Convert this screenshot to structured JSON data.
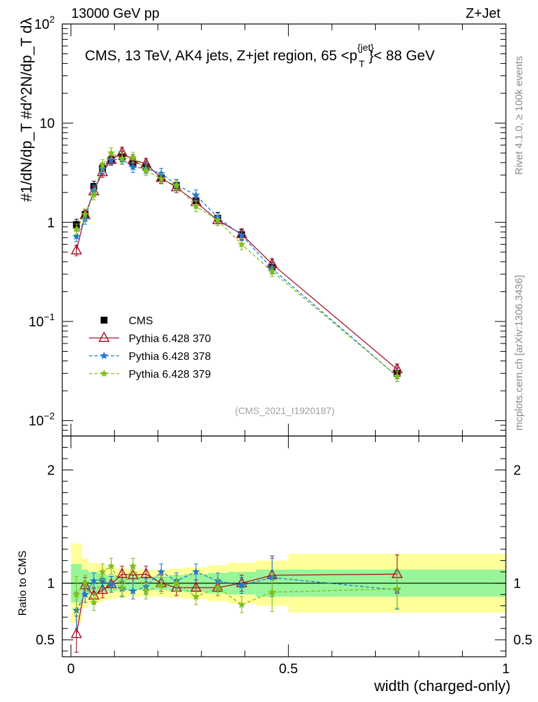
{
  "header": {
    "left": "13000 GeV pp",
    "right": "Z+Jet"
  },
  "side": {
    "rivet": "Rivet 4.1.0, ≥ 100k events",
    "mcplots": "mcplots.cern.ch [arXiv:1306.3436]"
  },
  "chart_data": [
    {
      "type": "scatter",
      "name": "main",
      "title_parts": {
        "pre": "CMS, 13 TeV, AK4 jets, Z+jet region, 65 <p",
        "sup": "{jet}",
        "sub": "T",
        "post": "}< 88 GeV"
      },
      "analysis_tag": "(CMS_2021_I1920187)",
      "ylabel": "#1/dN/dp_T #d^2N/dp_T dλ",
      "yscale": "log",
      "ylim": [
        0.007,
        100
      ],
      "xlim": [
        -0.02,
        1.0
      ],
      "y_ticks": [
        {
          "v": 100,
          "base": "10",
          "exp": "2"
        },
        {
          "v": 10,
          "base": "10",
          "exp": ""
        },
        {
          "v": 1,
          "base": "1",
          "exp": ""
        },
        {
          "v": 0.1,
          "base": "10",
          "exp": "−1"
        },
        {
          "v": 0.01,
          "base": "10",
          "exp": "−2"
        }
      ],
      "x": [
        0.0125,
        0.0325,
        0.0525,
        0.0725,
        0.0925,
        0.1175,
        0.1425,
        0.1725,
        0.2075,
        0.2425,
        0.2875,
        0.3375,
        0.3925,
        0.4625,
        0.75
      ],
      "legend": {
        "position": "lower-left"
      },
      "series": [
        {
          "name": "CMS",
          "label": "CMS",
          "color": "#000000",
          "marker": "square",
          "line": "none",
          "values": [
            0.95,
            1.2,
            2.3,
            3.5,
            4.3,
            4.6,
            3.9,
            3.6,
            2.8,
            2.35,
            1.65,
            1.1,
            0.75,
            0.35,
            0.03
          ]
        },
        {
          "name": "p370",
          "label": "Pythia 6.428 370",
          "color": "#a50f26",
          "marker": "open-triangle",
          "line": "solid",
          "values": [
            0.52,
            1.18,
            2.05,
            3.2,
            4.25,
            5.05,
            4.25,
            3.9,
            2.8,
            2.25,
            1.6,
            1.05,
            0.76,
            0.38,
            0.033
          ]
        },
        {
          "name": "p378",
          "label": "Pythia 6.428 378",
          "color": "#1f78d4",
          "marker": "star",
          "line": "dashed",
          "values": [
            0.72,
            1.08,
            2.1,
            3.45,
            4.25,
            4.35,
            3.6,
            3.5,
            3.1,
            2.4,
            1.88,
            1.12,
            0.74,
            0.34,
            0.028
          ]
        },
        {
          "name": "p379",
          "label": "Pythia 6.428 379",
          "color": "#7fbf1a",
          "marker": "star",
          "line": "dashed",
          "values": [
            0.85,
            1.2,
            1.9,
            3.8,
            5.0,
            4.4,
            4.5,
            3.35,
            2.75,
            2.35,
            1.45,
            1.05,
            0.6,
            0.32,
            0.028
          ]
        }
      ]
    },
    {
      "type": "scatter",
      "name": "ratio",
      "ylabel": "Ratio to CMS",
      "xlabel": "width (charged-only)",
      "ylim": [
        0.35,
        2.3
      ],
      "xlim": [
        -0.02,
        1.0
      ],
      "y_ticks": [
        {
          "v": 0.5,
          "label": "0.5"
        },
        {
          "v": 1,
          "label": "1"
        },
        {
          "v": 2,
          "label": "2"
        }
      ],
      "x_ticks": [
        {
          "v": 0,
          "label": "0"
        },
        {
          "v": 0.5,
          "label": "0.5"
        },
        {
          "v": 1,
          "label": "1"
        }
      ],
      "bins": [
        0,
        0.025,
        0.04,
        0.065,
        0.08,
        0.105,
        0.13,
        0.155,
        0.19,
        0.225,
        0.26,
        0.315,
        0.36,
        0.425,
        0.5,
        1.0
      ],
      "band_inner": [
        [
          0.83,
          1.17
        ],
        [
          0.88,
          1.12
        ],
        [
          0.9,
          1.1
        ],
        [
          0.92,
          1.08
        ],
        [
          0.93,
          1.07
        ],
        [
          0.94,
          1.06
        ],
        [
          0.94,
          1.06
        ],
        [
          0.94,
          1.06
        ],
        [
          0.94,
          1.06
        ],
        [
          0.93,
          1.07
        ],
        [
          0.92,
          1.08
        ],
        [
          0.91,
          1.09
        ],
        [
          0.9,
          1.1
        ],
        [
          0.88,
          1.12
        ],
        [
          0.88,
          1.12
        ]
      ],
      "band_outer": [
        [
          0.65,
          1.35
        ],
        [
          0.78,
          1.22
        ],
        [
          0.82,
          1.18
        ],
        [
          0.84,
          1.16
        ],
        [
          0.86,
          1.14
        ],
        [
          0.87,
          1.13
        ],
        [
          0.88,
          1.12
        ],
        [
          0.88,
          1.12
        ],
        [
          0.88,
          1.12
        ],
        [
          0.87,
          1.13
        ],
        [
          0.86,
          1.14
        ],
        [
          0.84,
          1.16
        ],
        [
          0.82,
          1.18
        ],
        [
          0.8,
          1.2
        ],
        [
          0.74,
          1.26
        ]
      ],
      "series": [
        {
          "name": "p370",
          "color": "#a50f26",
          "marker": "open-triangle",
          "line": "solid",
          "values": [
            0.55,
            0.98,
            0.89,
            0.94,
            0.99,
            1.08,
            1.07,
            1.08,
            1.0,
            0.96,
            0.96,
            0.96,
            1.0,
            1.07,
            1.08
          ]
        },
        {
          "name": "p378",
          "color": "#1f78d4",
          "marker": "star",
          "line": "dashed",
          "values": [
            0.76,
            0.9,
            1.02,
            1.03,
            0.99,
            0.95,
            0.93,
            0.97,
            1.1,
            1.02,
            1.1,
            1.02,
            0.98,
            1.05,
            0.94
          ]
        },
        {
          "name": "p379",
          "color": "#7fbf1a",
          "marker": "star",
          "line": "dashed",
          "values": [
            0.9,
            1.0,
            0.83,
            1.1,
            1.15,
            0.96,
            1.15,
            0.93,
            0.98,
            1.0,
            0.88,
            0.96,
            0.81,
            0.92,
            0.95
          ]
        }
      ]
    }
  ]
}
